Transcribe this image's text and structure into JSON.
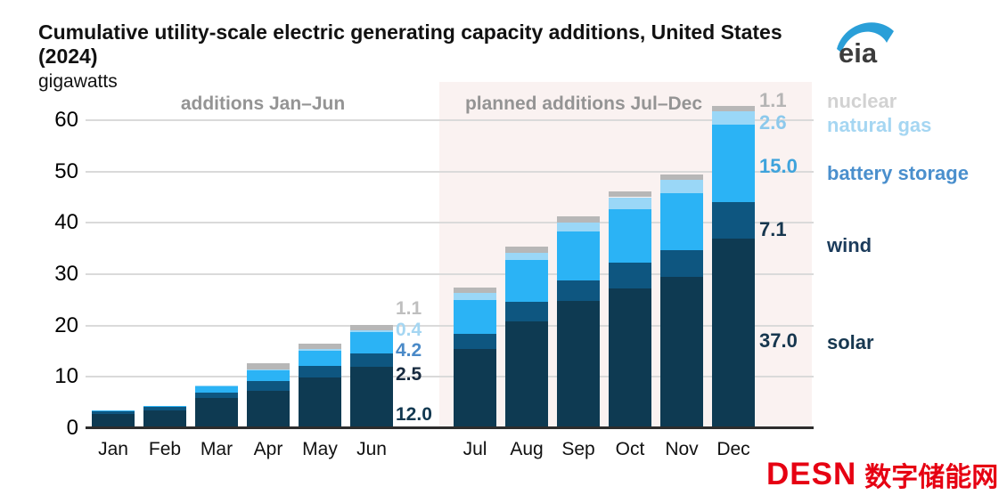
{
  "header": {
    "title_line1": "Cumulative utility-scale electric generating capacity additions, United States",
    "title_line2": "(2024)",
    "units": "gigawatts",
    "logo_text": "eia",
    "logo_color": "#2a9fd8",
    "logo_text_color": "#3c3c3c"
  },
  "annotations": {
    "left_label": "additions Jan–Jun",
    "right_label": "planned additions Jul–Dec"
  },
  "watermark": {
    "latin": "DESN",
    "cjk": "数字储能网",
    "color": "#e60012"
  },
  "chart_data": {
    "type": "bar",
    "stacked": true,
    "title": "Cumulative utility-scale electric generating capacity additions, United States (2024)",
    "ylabel": "gigawatts",
    "xlabel": "",
    "ylim": [
      0,
      60
    ],
    "yticks": [
      0,
      10,
      20,
      30,
      40,
      50,
      60
    ],
    "grid": true,
    "planned_region": {
      "from": "Jul",
      "to": "Dec",
      "background": "#faf2f1"
    },
    "categories": [
      "Jan",
      "Feb",
      "Mar",
      "Apr",
      "May",
      "Jun",
      "Jul",
      "Aug",
      "Sep",
      "Oct",
      "Nov",
      "Dec"
    ],
    "series": [
      {
        "name": "solar",
        "color": "#0e3a52",
        "values": [
          2.8,
          3.5,
          5.9,
          7.2,
          9.9,
          12.0,
          15.5,
          20.8,
          24.8,
          27.3,
          29.5,
          37.0
        ]
      },
      {
        "name": "wind",
        "color": "#0e5680",
        "values": [
          0.5,
          0.7,
          1.0,
          2.0,
          2.3,
          2.5,
          2.9,
          3.9,
          4.0,
          5.0,
          5.2,
          7.1
        ]
      },
      {
        "name": "battery storage",
        "color": "#2bb3f5",
        "values": [
          0.1,
          0.2,
          1.4,
          2.1,
          2.9,
          4.2,
          6.5,
          8.0,
          9.6,
          10.4,
          11.1,
          15.0
        ]
      },
      {
        "name": "natural gas",
        "color": "#9ad7f7",
        "values": [
          0.0,
          0.0,
          0.1,
          0.2,
          0.3,
          0.4,
          1.4,
          1.5,
          1.7,
          2.3,
          2.5,
          2.6
        ]
      },
      {
        "name": "nuclear",
        "color": "#b7b7b7",
        "values": [
          0.0,
          0.0,
          0.0,
          1.1,
          1.1,
          1.1,
          1.1,
          1.1,
          1.1,
          1.1,
          1.1,
          1.1
        ]
      }
    ],
    "value_labels": {
      "jun": [
        {
          "series": "nuclear",
          "text": "1.1",
          "color": "#bfbfbf"
        },
        {
          "series": "natural gas",
          "text": "0.4",
          "color": "#a5d6f2"
        },
        {
          "series": "battery storage",
          "text": "4.2",
          "color": "#4a8ac8"
        },
        {
          "series": "wind",
          "text": "2.5",
          "color": "#16293e"
        },
        {
          "series": "solar",
          "text": "12.0",
          "color": "#123850"
        }
      ],
      "dec": [
        {
          "series": "nuclear",
          "text": "1.1",
          "color": "#b5b5b5"
        },
        {
          "series": "natural gas",
          "text": "2.6",
          "color": "#8cc9ec"
        },
        {
          "series": "battery storage",
          "text": "15.0",
          "color": "#3ea3dc"
        },
        {
          "series": "wind",
          "text": "7.1",
          "color": "#16364e"
        },
        {
          "series": "solar",
          "text": "37.0",
          "color": "#16364e"
        }
      ]
    },
    "legend": [
      {
        "label": "nuclear",
        "color": "#d2d2d2"
      },
      {
        "label": "natural gas",
        "color": "#a5d6f2"
      },
      {
        "label": "battery storage",
        "color": "#4a8fcd"
      },
      {
        "label": "wind",
        "color": "#1c3c5c"
      },
      {
        "label": "solar",
        "color": "#163750"
      }
    ],
    "legend_position": "right"
  }
}
